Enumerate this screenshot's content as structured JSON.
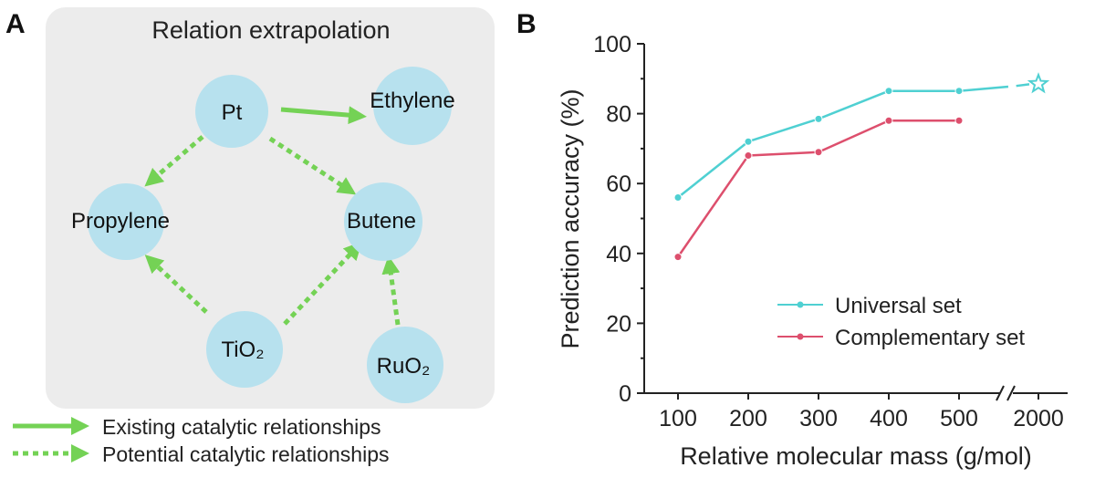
{
  "panel_a": {
    "label": "A",
    "title": "Relation extrapolation",
    "nodes": {
      "pt": "Pt",
      "ethylene": "Ethylene",
      "propylene": "Propylene",
      "butene": "Butene",
      "tio2": "TiO₂",
      "ruo2": "RuO₂"
    },
    "edges": [
      {
        "from": "pt",
        "to": "ethylene",
        "kind": "existing"
      },
      {
        "from": "pt",
        "to": "propylene",
        "kind": "potential"
      },
      {
        "from": "pt",
        "to": "butene",
        "kind": "potential"
      },
      {
        "from": "tio2",
        "to": "propylene",
        "kind": "potential"
      },
      {
        "from": "tio2",
        "to": "butene",
        "kind": "potential"
      },
      {
        "from": "ruo2",
        "to": "butene",
        "kind": "potential"
      }
    ],
    "legend": {
      "existing": "Existing catalytic relationships",
      "potential": "Potential catalytic relationships"
    },
    "colors": {
      "panel_bg": "#ececec",
      "node_fill": "#b7e1ee",
      "arrow": "#74d255"
    }
  },
  "chart_data": {
    "type": "line",
    "panel_label": "B",
    "title": "",
    "xlabel": "Relative molecular mass (g/mol)",
    "ylabel": "Prediction accuracy (%)",
    "categories": [
      "100",
      "200",
      "300",
      "400",
      "500",
      "2000"
    ],
    "ylim": [
      0,
      100
    ],
    "yticks": [
      0,
      20,
      40,
      60,
      80,
      100
    ],
    "x_axis_break": "between 500 and 2000",
    "grid": false,
    "legend_position": "bottom-right",
    "series": [
      {
        "name": "Universal set",
        "color": "#4fd0d2",
        "values": [
          56,
          72,
          78.5,
          86.5,
          86.5,
          88.5
        ],
        "last_marker": "star"
      },
      {
        "name": "Complementary set",
        "color": "#dd4f6d",
        "values": [
          39,
          68,
          69,
          78,
          78,
          null
        ]
      }
    ]
  }
}
